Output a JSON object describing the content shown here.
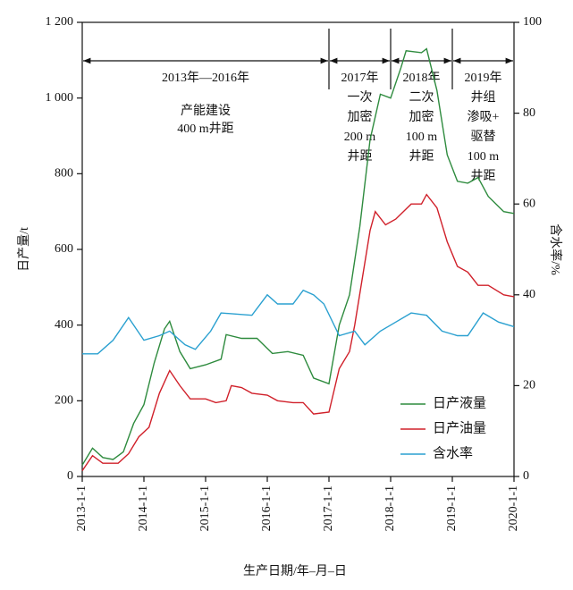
{
  "chart_data": {
    "type": "line",
    "xlabel": "生产日期/年–月–日",
    "ylabel": "日产量/t",
    "y2label": "含水率/%",
    "xlim": [
      "2013-1-1",
      "2020-1-1"
    ],
    "xticks": [
      "2013-1-1",
      "2014-1-1",
      "2015-1-1",
      "2016-1-1",
      "2017-1-1",
      "2018-1-1",
      "2019-1-1",
      "2020-1-1"
    ],
    "ylim": [
      0,
      1200
    ],
    "yticks": [
      0,
      200,
      400,
      600,
      800,
      {
        "value": 1000,
        "label": "1 000"
      },
      {
        "value": 1200,
        "label": "1 200"
      }
    ],
    "y2lim": [
      0,
      100
    ],
    "y2ticks": [
      0,
      20,
      40,
      60,
      80,
      100
    ],
    "legend": "lower right",
    "annotations": [
      {
        "period": "2013年—2016年",
        "lines": [
          "产能建设",
          "400 m井距"
        ]
      },
      {
        "period": "2017年",
        "lines": [
          "一次",
          "加密",
          "200 m",
          "井距"
        ]
      },
      {
        "period": "2018年",
        "lines": [
          "二次",
          "加密",
          "100 m",
          "井距"
        ]
      },
      {
        "period": "2019年",
        "lines": [
          "井组",
          "渗吸+",
          "驱替",
          "100 m",
          "井距"
        ]
      }
    ],
    "series": [
      {
        "name": "日产液量",
        "color": "#2e8b3e",
        "x": [
          "2013-1-1",
          "2013-3-1",
          "2013-5-1",
          "2013-7-1",
          "2013-9-1",
          "2013-11-1",
          "2014-1-1",
          "2014-3-1",
          "2014-5-1",
          "2014-6-1",
          "2014-8-1",
          "2014-10-1",
          "2015-1-1",
          "2015-4-1",
          "2015-5-1",
          "2015-8-1",
          "2015-11-1",
          "2016-2-1",
          "2016-5-1",
          "2016-8-1",
          "2016-10-1",
          "2017-1-1",
          "2017-3-1",
          "2017-5-1",
          "2017-7-1",
          "2017-9-1",
          "2017-11-1",
          "2018-1-1",
          "2018-3-1",
          "2018-4-1",
          "2018-7-1",
          "2018-8-1",
          "2018-10-1",
          "2018-12-1",
          "2019-2-1",
          "2019-4-1",
          "2019-6-1",
          "2019-8-1",
          "2019-11-1",
          "2020-1-1"
        ],
        "values": [
          30,
          75,
          50,
          45,
          65,
          140,
          190,
          300,
          390,
          410,
          330,
          285,
          295,
          310,
          375,
          365,
          365,
          325,
          330,
          320,
          260,
          245,
          400,
          480,
          660,
          890,
          1010,
          1000,
          1080,
          1125,
          1120,
          1130,
          1020,
          850,
          780,
          775,
          790,
          740,
          700,
          695
        ]
      },
      {
        "name": "日产油量",
        "color": "#d0202a",
        "x": [
          "2013-1-1",
          "2013-3-1",
          "2013-5-1",
          "2013-8-1",
          "2013-10-1",
          "2013-12-1",
          "2014-2-1",
          "2014-4-1",
          "2014-6-1",
          "2014-8-1",
          "2014-10-1",
          "2015-1-1",
          "2015-3-1",
          "2015-5-1",
          "2015-6-1",
          "2015-8-1",
          "2015-10-1",
          "2016-1-1",
          "2016-3-1",
          "2016-6-1",
          "2016-8-1",
          "2016-10-1",
          "2017-1-1",
          "2017-3-1",
          "2017-5-1",
          "2017-6-1",
          "2017-9-1",
          "2017-10-1",
          "2017-12-1",
          "2018-2-1",
          "2018-5-1",
          "2018-7-1",
          "2018-8-1",
          "2018-10-1",
          "2018-12-1",
          "2019-2-1",
          "2019-4-1",
          "2019-6-1",
          "2019-8-1",
          "2019-11-1",
          "2020-1-1"
        ],
        "values": [
          15,
          55,
          35,
          35,
          60,
          105,
          130,
          220,
          280,
          240,
          205,
          205,
          195,
          200,
          240,
          235,
          220,
          215,
          200,
          195,
          195,
          165,
          170,
          285,
          330,
          400,
          650,
          700,
          665,
          680,
          720,
          720,
          745,
          710,
          620,
          555,
          540,
          505,
          505,
          480,
          475
        ]
      },
      {
        "name": "含水率",
        "color": "#2aa0d0",
        "axis": "y2",
        "x": [
          "2013-1-1",
          "2013-4-1",
          "2013-7-1",
          "2013-10-1",
          "2014-1-1",
          "2014-4-1",
          "2014-6-1",
          "2014-9-1",
          "2014-11-1",
          "2015-2-1",
          "2015-4-1",
          "2015-10-1",
          "2016-1-1",
          "2016-3-1",
          "2016-6-1",
          "2016-8-1",
          "2016-10-1",
          "2016-12-1",
          "2017-3-1",
          "2017-6-1",
          "2017-8-1",
          "2017-11-1",
          "2018-2-1",
          "2018-5-1",
          "2018-8-1",
          "2018-11-1",
          "2019-2-1",
          "2019-4-1",
          "2019-7-1",
          "2019-10-1",
          "2020-1-1"
        ],
        "values": [
          27,
          27,
          30,
          35,
          30,
          31,
          32,
          29,
          28,
          32,
          36,
          35.5,
          40,
          38,
          38,
          41,
          40,
          38,
          31,
          32,
          29,
          32,
          34,
          36,
          35.5,
          32,
          31,
          31,
          36,
          34,
          33
        ]
      }
    ]
  }
}
